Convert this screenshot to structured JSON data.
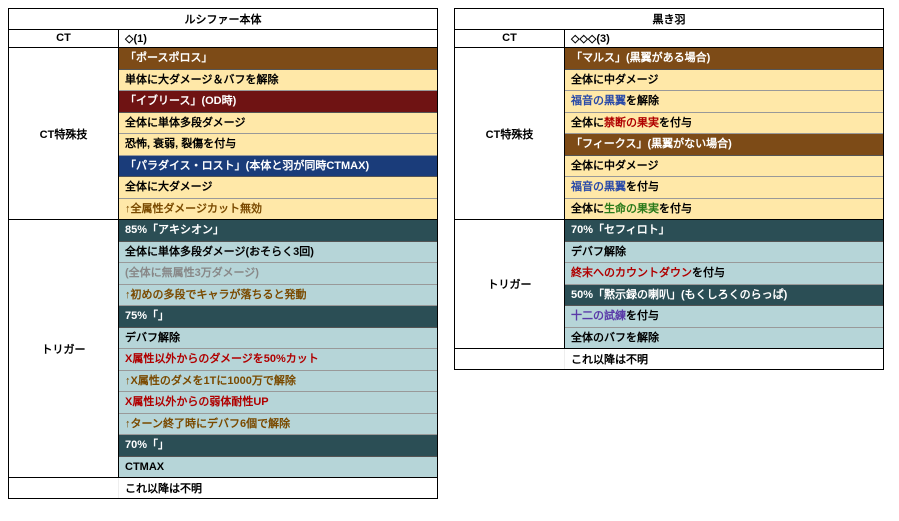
{
  "left": {
    "title": "ルシファー本体",
    "ct_label": "CT",
    "ct_value": "◇(1)",
    "sections": [
      {
        "label": "CT特殊技",
        "rows": [
          {
            "text": "「ポースポロス」",
            "cls": "bg-dark-orange"
          },
          {
            "text": "単体に大ダメージ＆バフを解除",
            "cls": "bg-cream"
          },
          {
            "text": "「イブリース」(OD時)",
            "cls": "bg-dark-red"
          },
          {
            "text": "全体に単体多段ダメージ",
            "cls": "bg-cream"
          },
          {
            "text": "恐怖, 衰弱, 裂傷を付与",
            "cls": "bg-cream"
          },
          {
            "text": "「パラダイス・ロスト」(本体と羽が同時CTMAX)",
            "cls": "bg-blue"
          },
          {
            "text": "全体に大ダメージ",
            "cls": "bg-cream"
          },
          {
            "html": "<span class='txt-brown'>↑全属性ダメージカット無効</span>",
            "cls": "bg-cream"
          }
        ]
      },
      {
        "label": "トリガー",
        "rows": [
          {
            "text": "85%「アキシオン」",
            "cls": "bg-teal-dark"
          },
          {
            "text": "全体に単体多段ダメージ(おそらく3回)",
            "cls": "bg-teal-light"
          },
          {
            "html": "<span class='txt-gray'>(全体に無属性3万ダメージ)</span>",
            "cls": "bg-teal-light"
          },
          {
            "html": "<span class='txt-brown'>↑初めの多段でキャラが落ちると発動</span>",
            "cls": "bg-teal-light"
          },
          {
            "text": "75%「」",
            "cls": "bg-teal-dark"
          },
          {
            "text": "デバフ解除",
            "cls": "bg-teal-light"
          },
          {
            "html": "<span class='txt-red'>X属性以外からのダメージを50%カット</span>",
            "cls": "bg-teal-light"
          },
          {
            "html": "<span class='txt-brown'>↑X属性のダメを1Tに1000万で解除</span>",
            "cls": "bg-teal-light"
          },
          {
            "html": "<span class='txt-red'>X属性以外からの弱体耐性UP</span>",
            "cls": "bg-teal-light"
          },
          {
            "html": "<span class='txt-brown'>↑ターン終了時にデバフ6個で解除</span>",
            "cls": "bg-teal-light"
          },
          {
            "text": "70%「」",
            "cls": "bg-teal-dark"
          },
          {
            "text": "CTMAX",
            "cls": "bg-teal-light"
          }
        ]
      }
    ],
    "footer": "これ以降は不明"
  },
  "right": {
    "title": "黒き羽",
    "ct_label": "CT",
    "ct_value": "◇◇◇(3)",
    "sections": [
      {
        "label": "CT特殊技",
        "rows": [
          {
            "text": "「マルス」(黒翼がある場合)",
            "cls": "bg-dark-orange"
          },
          {
            "text": "全体に中ダメージ",
            "cls": "bg-cream"
          },
          {
            "html": "<span class='txt-blue'>福音の黒翼</span>を解除",
            "cls": "bg-cream"
          },
          {
            "html": "全体に<span class='txt-red'>禁断の果実</span>を付与",
            "cls": "bg-cream"
          },
          {
            "text": "「フィークス」(黒翼がない場合)",
            "cls": "bg-dark-orange"
          },
          {
            "text": "全体に中ダメージ",
            "cls": "bg-cream"
          },
          {
            "html": "<span class='txt-blue'>福音の黒翼</span>を付与",
            "cls": "bg-cream"
          },
          {
            "html": "全体に<span class='txt-green'>生命の果実</span>を付与",
            "cls": "bg-cream"
          }
        ]
      },
      {
        "label": "トリガー",
        "rows": [
          {
            "text": "70%「セフィロト」",
            "cls": "bg-teal-dark"
          },
          {
            "text": "デバフ解除",
            "cls": "bg-teal-light"
          },
          {
            "html": "<span class='txt-red'>終末へのカウントダウン</span>を付与",
            "cls": "bg-teal-light"
          },
          {
            "text": "50%「黙示録の喇叭」(もくしろくのらっぱ)",
            "cls": "bg-teal-dark"
          },
          {
            "html": "<span class='txt-purple'>十二の試練</span>を付与",
            "cls": "bg-teal-light"
          },
          {
            "text": "全体のバフを解除",
            "cls": "bg-teal-light"
          }
        ]
      }
    ],
    "footer": "これ以降は不明"
  }
}
